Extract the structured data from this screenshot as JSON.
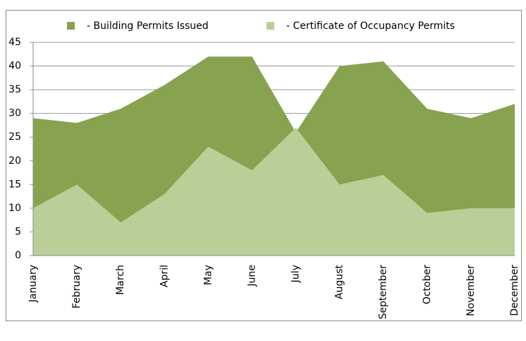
{
  "chart_data": {
    "type": "area",
    "categories": [
      "January",
      "February",
      "March",
      "April",
      "May",
      "June",
      "July",
      "August",
      "September",
      "October",
      "November",
      "December"
    ],
    "series": [
      {
        "name": "- Building Permits Issued",
        "color": "#87a34f",
        "values": [
          29,
          28,
          31,
          36,
          42,
          42,
          26,
          40,
          41,
          31,
          29,
          32
        ]
      },
      {
        "name": "- Certificate of Occupancy Permits",
        "color": "#b9cf97",
        "values": [
          10,
          15,
          7,
          13,
          23,
          18,
          27,
          15,
          17,
          9,
          10,
          10
        ]
      }
    ],
    "ylim": [
      0,
      45
    ],
    "yticks": [
      0,
      5,
      10,
      15,
      20,
      25,
      30,
      35,
      40,
      45
    ],
    "grid": true,
    "legend": "top"
  }
}
